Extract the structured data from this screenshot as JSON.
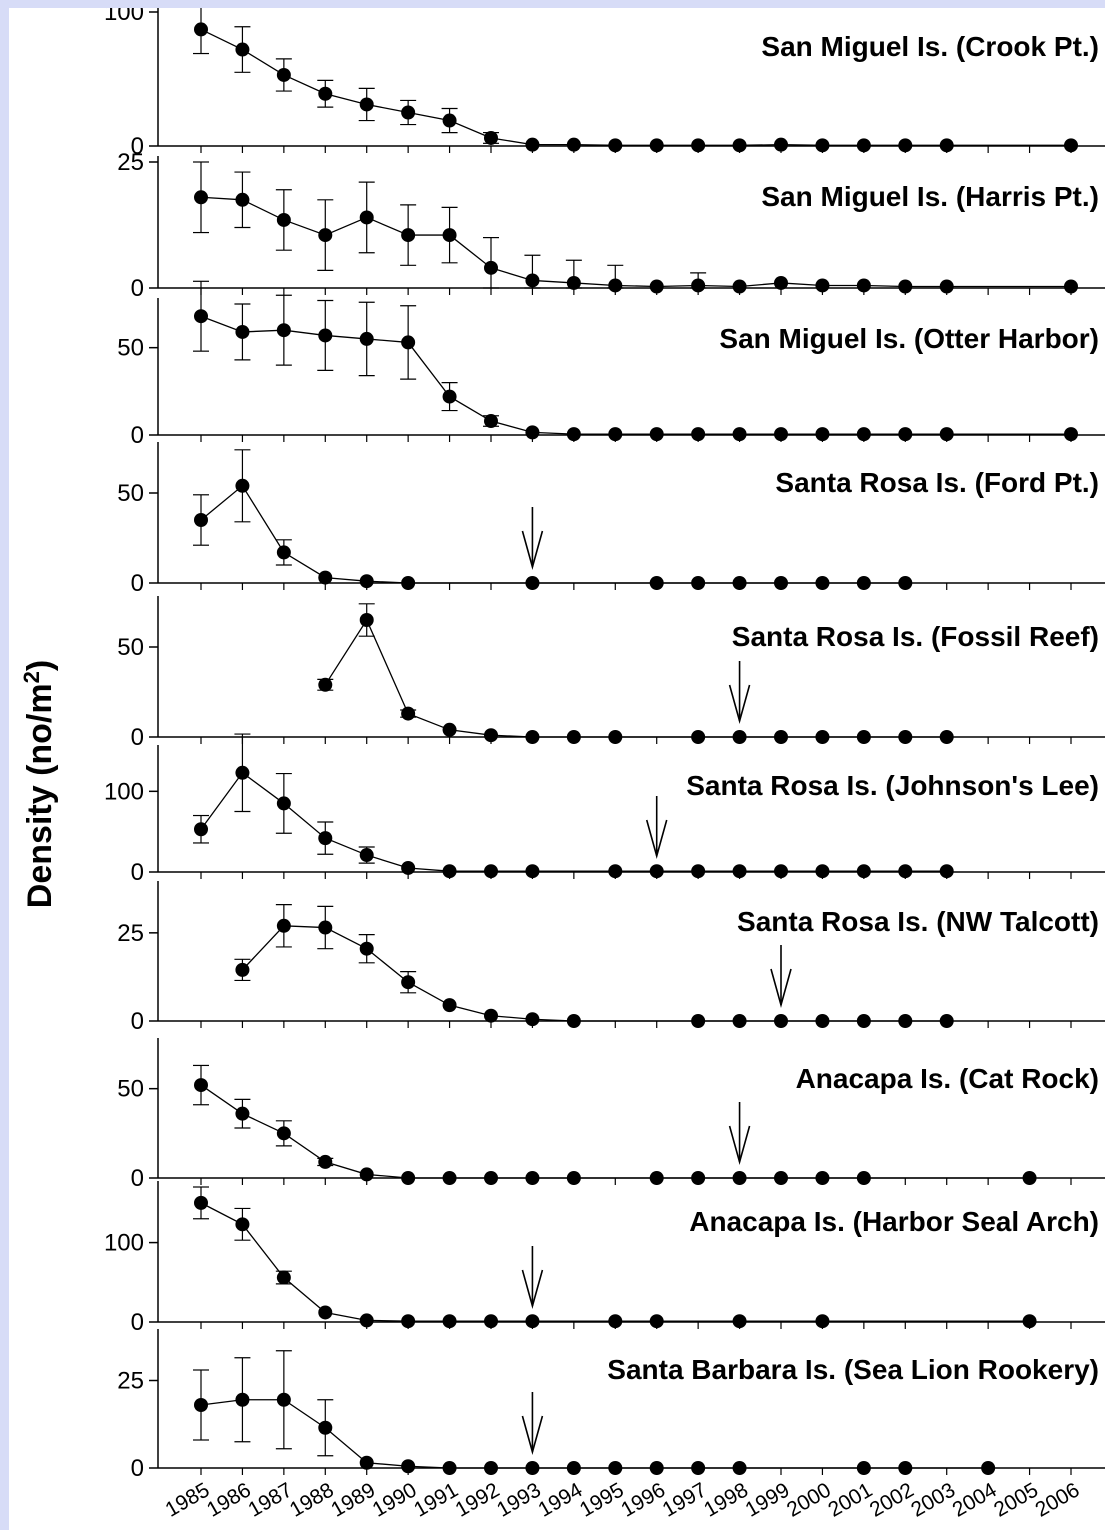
{
  "y_axis_title": "Density (no/m",
  "y_axis_title_superscript": "2",
  "y_axis_title_close": ")",
  "x_tick_labels": [
    "1985",
    "1986",
    "1987",
    "1988",
    "1989",
    "1990",
    "1991",
    "1992",
    "1993",
    "1994",
    "1995",
    "1996",
    "1997",
    "1998",
    "1999",
    "2000",
    "2001",
    "2002",
    "2003",
    "2004",
    "2005",
    "2006"
  ],
  "colors": {
    "background": "#d7dcf7",
    "plot": "#ffffff",
    "ink": "#000000"
  },
  "chart_data": [
    {
      "type": "line",
      "title": "San Miguel Is. (Crook Pt.)",
      "ylim": [
        0,
        100
      ],
      "yticks": [
        0,
        100
      ],
      "x": [
        1985,
        1986,
        1987,
        1988,
        1989,
        1990,
        1991,
        1992,
        1993,
        1994,
        1995,
        1996,
        1997,
        1998,
        1999,
        2000,
        2001,
        2002,
        2003,
        2006
      ],
      "y": [
        87,
        72,
        53,
        39,
        31,
        25,
        19,
        6,
        1,
        1,
        0.5,
        0.5,
        0.5,
        0.5,
        1,
        0.5,
        0.5,
        0.5,
        0.5,
        0.5
      ],
      "err": [
        18,
        17,
        12,
        10,
        12,
        9,
        9,
        4,
        0,
        0,
        0,
        0,
        0,
        0,
        0,
        0,
        0,
        0,
        0,
        0
      ],
      "arrow": null
    },
    {
      "type": "line",
      "title": "San Miguel Is. (Harris Pt.)",
      "ylim": [
        0,
        25
      ],
      "yticks": [
        0,
        25
      ],
      "x": [
        1985,
        1986,
        1987,
        1988,
        1989,
        1990,
        1991,
        1992,
        1993,
        1994,
        1995,
        1996,
        1997,
        1998,
        1999,
        2000,
        2001,
        2002,
        2003,
        2006
      ],
      "y": [
        18,
        17.5,
        13.5,
        10.5,
        14,
        10.5,
        10.5,
        4,
        1.5,
        1,
        0.5,
        0.3,
        0.5,
        0.3,
        1,
        0.5,
        0.5,
        0.3,
        0.3,
        0.3
      ],
      "err": [
        7,
        5.5,
        6,
        7,
        7,
        6,
        5.5,
        6,
        5,
        4.5,
        4,
        0,
        2.5,
        0,
        0,
        0,
        0,
        0,
        0,
        0
      ],
      "arrow": null
    },
    {
      "type": "line",
      "title": "San Miguel Is. (Otter Harbor)",
      "ylim": [
        0,
        75
      ],
      "yticks": [
        0,
        50
      ],
      "x": [
        1985,
        1986,
        1987,
        1988,
        1989,
        1990,
        1991,
        1992,
        1993,
        1994,
        1995,
        1996,
        1997,
        1998,
        1999,
        2000,
        2001,
        2002,
        2003,
        2006
      ],
      "y": [
        68,
        59,
        60,
        57,
        55,
        53,
        22,
        8,
        1.5,
        0.5,
        0.5,
        0.5,
        0.5,
        0.5,
        0.5,
        0.5,
        0.5,
        0.5,
        0.5,
        0.5
      ],
      "err": [
        20,
        16,
        20,
        20,
        21,
        21,
        8,
        3,
        0,
        0,
        0,
        0,
        0,
        0,
        0,
        0,
        0,
        0,
        0,
        0
      ],
      "arrow": null
    },
    {
      "type": "line",
      "title": "Santa Rosa Is. (Ford Pt.)",
      "ylim": [
        0,
        75
      ],
      "yticks": [
        0,
        50
      ],
      "x": [
        1985,
        1986,
        1987,
        1988,
        1989,
        1990,
        1993,
        1996,
        1997,
        1998,
        1999,
        2000,
        2001,
        2002
      ],
      "y": [
        35,
        54,
        17,
        3,
        1,
        0,
        0,
        0,
        0,
        0,
        0,
        0,
        0,
        0
      ],
      "err": [
        14,
        20,
        7,
        0,
        0,
        0,
        0,
        0,
        0,
        0,
        0,
        0,
        0,
        0
      ],
      "arrow": 1993
    },
    {
      "type": "line",
      "title": "Santa Rosa Is. (Fossil Reef)",
      "ylim": [
        0,
        75
      ],
      "yticks": [
        0,
        50
      ],
      "x": [
        1988,
        1989,
        1990,
        1991,
        1992,
        1993,
        1994,
        1995,
        1997,
        1998,
        1999,
        2000,
        2001,
        2002,
        2003
      ],
      "y": [
        29,
        65,
        13,
        4,
        1,
        0,
        0,
        0,
        0,
        0,
        0,
        0,
        0,
        0,
        0
      ],
      "err": [
        3,
        9,
        2,
        0,
        0,
        0,
        0,
        0,
        0,
        0,
        0,
        0,
        0,
        0,
        0
      ],
      "arrow": 1998
    },
    {
      "type": "line",
      "title": "Santa Rosa Is. (Johnson's Lee)",
      "ylim": [
        0,
        150
      ],
      "yticks": [
        0,
        100
      ],
      "x": [
        1985,
        1986,
        1987,
        1988,
        1989,
        1990,
        1991,
        1992,
        1993,
        1995,
        1996,
        1997,
        1998,
        1999,
        2000,
        2001,
        2002,
        2003
      ],
      "y": [
        53,
        123,
        85,
        42,
        21,
        5,
        1,
        1,
        1,
        1,
        1,
        1,
        1,
        1,
        1,
        1,
        1,
        1
      ],
      "err": [
        17,
        48,
        37,
        20,
        10,
        0,
        0,
        0,
        0,
        0,
        0,
        0,
        0,
        0,
        0,
        0,
        0,
        0
      ],
      "arrow": 1996
    },
    {
      "type": "line",
      "title": "Santa Rosa Is. (NW Talcott)",
      "ylim": [
        0,
        38
      ],
      "yticks": [
        0,
        25
      ],
      "x": [
        1986,
        1987,
        1988,
        1989,
        1990,
        1991,
        1992,
        1993,
        1994,
        1997,
        1998,
        1999,
        2000,
        2001,
        2002,
        2003
      ],
      "y": [
        14.5,
        27,
        26.5,
        20.5,
        11,
        4.5,
        1.5,
        0.5,
        0,
        0,
        0,
        0,
        0,
        0,
        0,
        0
      ],
      "err": [
        3,
        6,
        6,
        4,
        3,
        0,
        0,
        0,
        0,
        0,
        0,
        0,
        0,
        0,
        0,
        0
      ],
      "arrow": 1999
    },
    {
      "type": "line",
      "title": "Anacapa Is. (Cat Rock)",
      "ylim": [
        0,
        75
      ],
      "yticks": [
        0,
        50
      ],
      "x": [
        1985,
        1986,
        1987,
        1988,
        1989,
        1990,
        1991,
        1992,
        1993,
        1994,
        1996,
        1997,
        1998,
        1999,
        2000,
        2001,
        2005
      ],
      "y": [
        52,
        36,
        25,
        9,
        2,
        0,
        0,
        0,
        0,
        0,
        0,
        0,
        0,
        0,
        0,
        0,
        0
      ],
      "err": [
        11,
        8,
        7,
        2,
        0,
        0,
        0,
        0,
        0,
        0,
        0,
        0,
        0,
        0,
        0,
        0,
        0
      ],
      "arrow": 1998
    },
    {
      "type": "line",
      "title": "Anacapa Is. (Harbor Seal Arch)",
      "ylim": [
        0,
        170
      ],
      "yticks": [
        0,
        100
      ],
      "x": [
        1985,
        1986,
        1987,
        1988,
        1989,
        1990,
        1991,
        1992,
        1993,
        1995,
        1996,
        1998,
        2000,
        2005
      ],
      "y": [
        150,
        123,
        56,
        12,
        2,
        1,
        1,
        1,
        1,
        1,
        1,
        1,
        1,
        1
      ],
      "err": [
        20,
        20,
        8,
        0,
        0,
        0,
        0,
        0,
        0,
        0,
        0,
        0,
        0,
        0
      ],
      "arrow": 1993
    },
    {
      "type": "line",
      "title": "Santa Barbara Is. (Sea Lion Rookery)",
      "ylim": [
        0,
        38
      ],
      "yticks": [
        0,
        25
      ],
      "x": [
        1985,
        1986,
        1987,
        1988,
        1989,
        1990,
        1991,
        1992,
        1993,
        1994,
        1995,
        1996,
        1997,
        1998,
        2001,
        2002,
        2004
      ],
      "y": [
        18,
        19.5,
        19.5,
        11.5,
        1.5,
        0.5,
        0,
        0,
        0,
        0,
        0,
        0,
        0,
        0,
        0,
        0,
        0
      ],
      "err": [
        10,
        12,
        14,
        8,
        0,
        0,
        0,
        0,
        0,
        0,
        0,
        0,
        0,
        0,
        0,
        0,
        0
      ],
      "arrow": 1993
    }
  ]
}
